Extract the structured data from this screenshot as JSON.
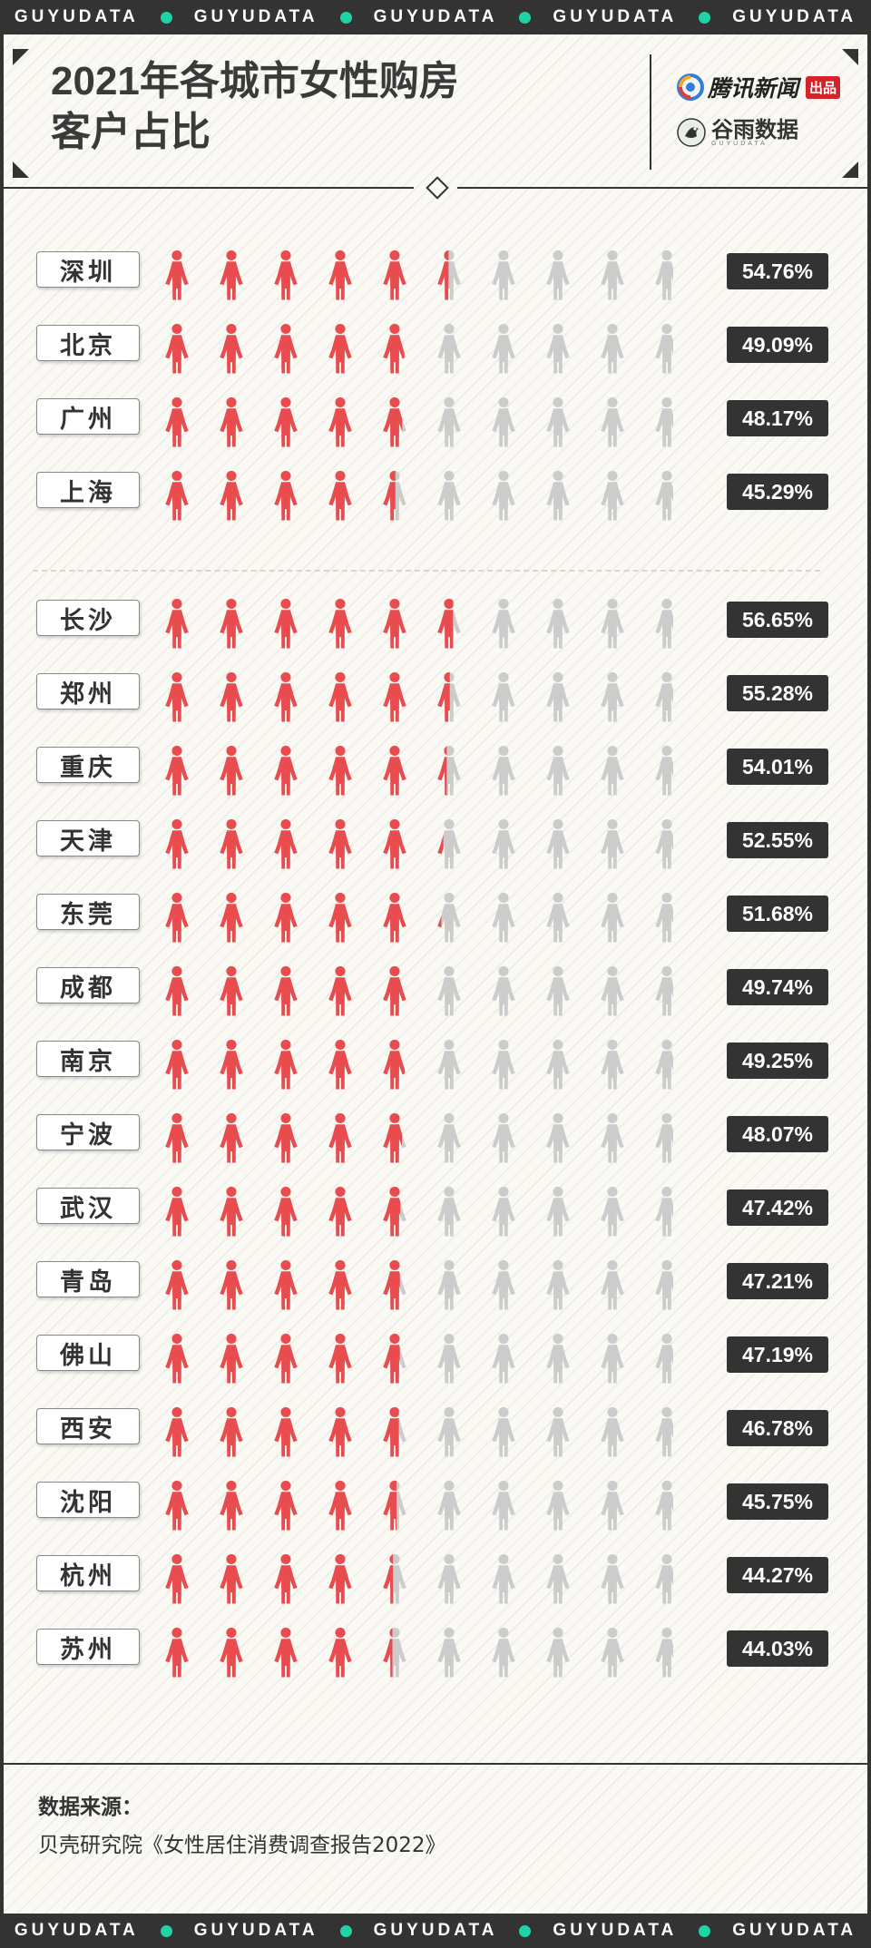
{
  "band": {
    "text": "GUYUDATA",
    "repeat": 5,
    "dot_color": "#1fd3a6"
  },
  "header": {
    "title_line1": "2021年各城市女性购房",
    "title_line2": "客户占比",
    "logo_tencent": "腾讯新闻",
    "logo_tencent_tag": "出品",
    "logo_guyu": "谷雨数据",
    "logo_guyu_sub": "GUYUDATA"
  },
  "colors": {
    "female_filled": "#e84c4f",
    "female_empty": "#cccccc",
    "dark": "#333333",
    "background": "#fbf9f4"
  },
  "chart_data": {
    "type": "pictograph",
    "title": "2021年各城市女性购房客户占比",
    "icons_per_row": 10,
    "unit": "%",
    "groups": [
      {
        "rows": [
          {
            "city": "深圳",
            "value": 54.76,
            "label": "54.76%"
          },
          {
            "city": "北京",
            "value": 49.09,
            "label": "49.09%"
          },
          {
            "city": "广州",
            "value": 48.17,
            "label": "48.17%"
          },
          {
            "city": "上海",
            "value": 45.29,
            "label": "45.29%"
          }
        ]
      },
      {
        "rows": [
          {
            "city": "长沙",
            "value": 56.65,
            "label": "56.65%"
          },
          {
            "city": "郑州",
            "value": 55.28,
            "label": "55.28%"
          },
          {
            "city": "重庆",
            "value": 54.01,
            "label": "54.01%"
          },
          {
            "city": "天津",
            "value": 52.55,
            "label": "52.55%"
          },
          {
            "city": "东莞",
            "value": 51.68,
            "label": "51.68%"
          },
          {
            "city": "成都",
            "value": 49.74,
            "label": "49.74%"
          },
          {
            "city": "南京",
            "value": 49.25,
            "label": "49.25%"
          },
          {
            "city": "宁波",
            "value": 48.07,
            "label": "48.07%"
          },
          {
            "city": "武汉",
            "value": 47.42,
            "label": "47.42%"
          },
          {
            "city": "青岛",
            "value": 47.21,
            "label": "47.21%"
          },
          {
            "city": "佛山",
            "value": 47.19,
            "label": "47.19%"
          },
          {
            "city": "西安",
            "value": 46.78,
            "label": "46.78%"
          },
          {
            "city": "沈阳",
            "value": 45.75,
            "label": "45.75%"
          },
          {
            "city": "杭州",
            "value": 44.27,
            "label": "44.27%"
          },
          {
            "city": "苏州",
            "value": 44.03,
            "label": "44.03%"
          }
        ]
      }
    ]
  },
  "footer": {
    "source_label": "数据来源：",
    "source_text": "贝壳研究院《女性居住消费调查报告2022》"
  }
}
